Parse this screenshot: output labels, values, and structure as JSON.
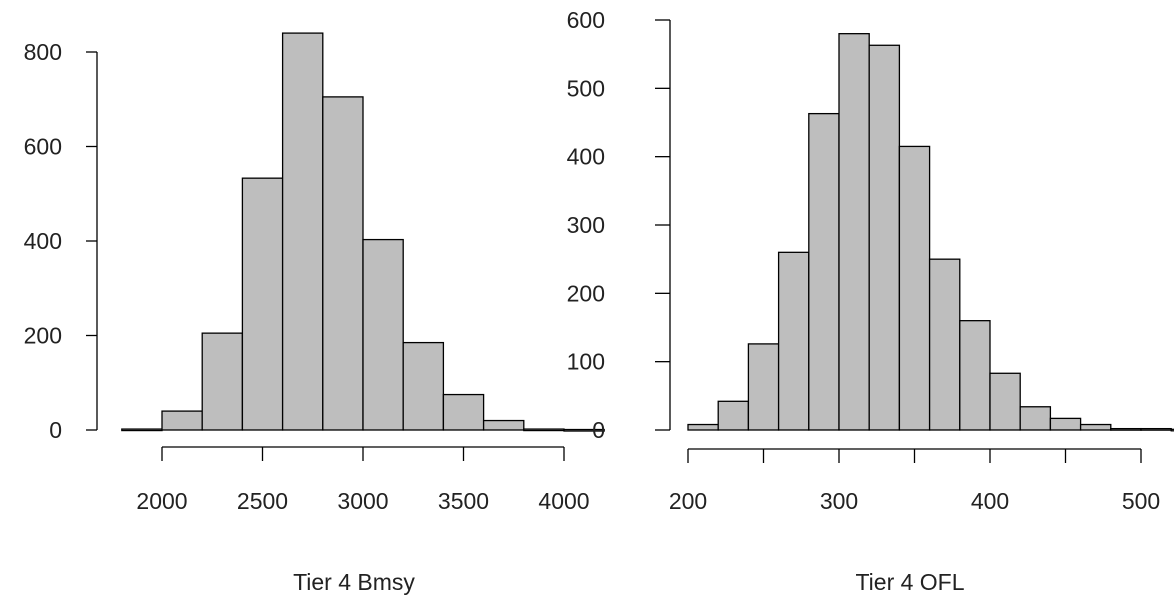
{
  "chart_data": [
    {
      "type": "bar",
      "histogram": true,
      "xlabel": "Tier 4 Bmsy",
      "ylabel": "",
      "title": "",
      "bins": [
        {
          "start": 1800,
          "end": 2000,
          "count": 2
        },
        {
          "start": 2000,
          "end": 2200,
          "count": 40
        },
        {
          "start": 2200,
          "end": 2400,
          "count": 205
        },
        {
          "start": 2400,
          "end": 2600,
          "count": 533
        },
        {
          "start": 2600,
          "end": 2800,
          "count": 840
        },
        {
          "start": 2800,
          "end": 3000,
          "count": 705
        },
        {
          "start": 3000,
          "end": 3200,
          "count": 403
        },
        {
          "start": 3200,
          "end": 3400,
          "count": 185
        },
        {
          "start": 3400,
          "end": 3600,
          "count": 75
        },
        {
          "start": 3600,
          "end": 3800,
          "count": 20
        },
        {
          "start": 3800,
          "end": 4000,
          "count": 2
        },
        {
          "start": 4000,
          "end": 4200,
          "count": 1
        }
      ],
      "xticks": [
        "2000",
        "2500",
        "3000",
        "3500",
        "4000"
      ],
      "yticks": [
        "0",
        "200",
        "400",
        "600",
        "800"
      ],
      "xlim": [
        1800,
        4200
      ],
      "ylim": [
        0,
        880
      ],
      "bar_color": "#bebebe"
    },
    {
      "type": "bar",
      "histogram": true,
      "xlabel": "Tier 4 OFL",
      "ylabel": "",
      "title": "",
      "bins": [
        {
          "start": 200,
          "end": 220,
          "count": 8
        },
        {
          "start": 220,
          "end": 240,
          "count": 42
        },
        {
          "start": 240,
          "end": 260,
          "count": 126
        },
        {
          "start": 260,
          "end": 280,
          "count": 260
        },
        {
          "start": 280,
          "end": 300,
          "count": 463
        },
        {
          "start": 300,
          "end": 320,
          "count": 580
        },
        {
          "start": 320,
          "end": 340,
          "count": 563
        },
        {
          "start": 340,
          "end": 360,
          "count": 415
        },
        {
          "start": 360,
          "end": 380,
          "count": 250
        },
        {
          "start": 380,
          "end": 400,
          "count": 160
        },
        {
          "start": 400,
          "end": 420,
          "count": 83
        },
        {
          "start": 420,
          "end": 440,
          "count": 34
        },
        {
          "start": 440,
          "end": 460,
          "count": 17
        },
        {
          "start": 460,
          "end": 480,
          "count": 8
        },
        {
          "start": 480,
          "end": 500,
          "count": 2
        },
        {
          "start": 500,
          "end": 520,
          "count": 2
        },
        {
          "start": 520,
          "end": 540,
          "count": 1
        }
      ],
      "xticks": [
        "200",
        "300",
        "400",
        "500"
      ],
      "yticks": [
        "0",
        "100",
        "200",
        "300",
        "400",
        "500",
        "600"
      ],
      "xlim": [
        190,
        540
      ],
      "ylim": [
        0,
        600
      ],
      "bar_color": "#bebebe"
    }
  ]
}
